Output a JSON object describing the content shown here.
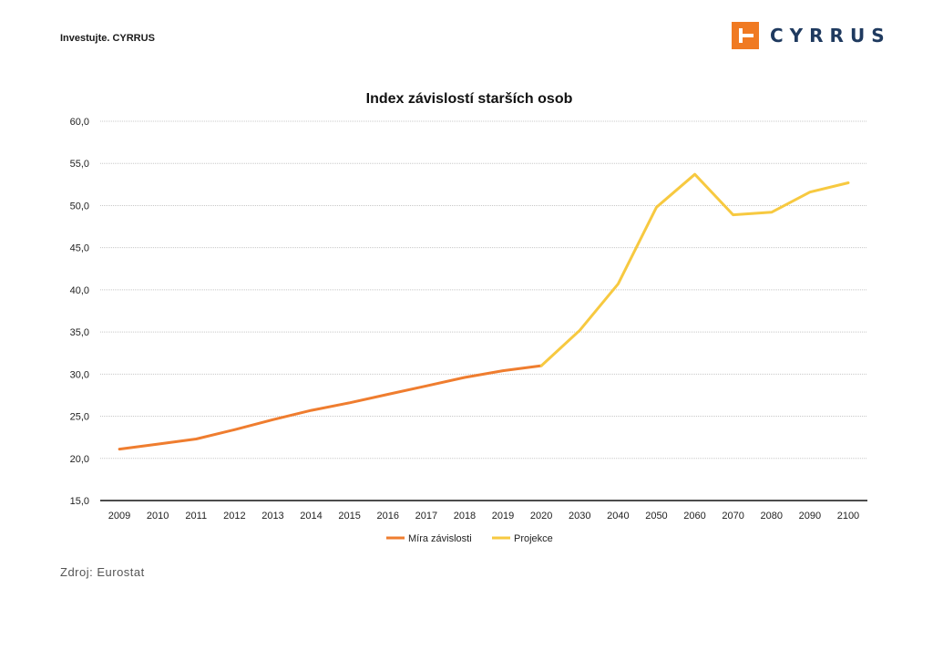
{
  "header": {
    "tagline": "Investujte. CYRRUS",
    "logo_text": "CYRRUS"
  },
  "footer": {
    "source": "Zdroj: Eurostat"
  },
  "chart_data": {
    "type": "line",
    "title": "Index závislostí starších osob",
    "xlabel": "",
    "ylabel": "",
    "categories": [
      "2009",
      "2010",
      "2011",
      "2012",
      "2013",
      "2014",
      "2015",
      "2016",
      "2017",
      "2018",
      "2019",
      "2020",
      "2030",
      "2040",
      "2050",
      "2060",
      "2070",
      "2080",
      "2090",
      "2100"
    ],
    "ylim": [
      15,
      60
    ],
    "yticks": [
      "15,0",
      "20,0",
      "25,0",
      "30,0",
      "35,0",
      "40,0",
      "45,0",
      "50,0",
      "55,0",
      "60,0"
    ],
    "grid": true,
    "legend_position": "bottom",
    "series": [
      {
        "name": "Míra závislosti",
        "color": "#ef7d2f",
        "values": [
          21.1,
          21.7,
          22.3,
          23.4,
          24.6,
          25.7,
          26.6,
          27.6,
          28.6,
          29.6,
          30.4,
          31.0,
          null,
          null,
          null,
          null,
          null,
          null,
          null,
          null
        ]
      },
      {
        "name": "Projekce",
        "color": "#f7c940",
        "values": [
          null,
          null,
          null,
          null,
          null,
          null,
          null,
          null,
          null,
          null,
          null,
          31.0,
          35.2,
          40.7,
          49.8,
          53.7,
          48.9,
          49.2,
          51.6,
          52.7
        ]
      }
    ]
  },
  "colors": {
    "brand": "#f07a22",
    "logo_text": "#1f3a5f"
  }
}
